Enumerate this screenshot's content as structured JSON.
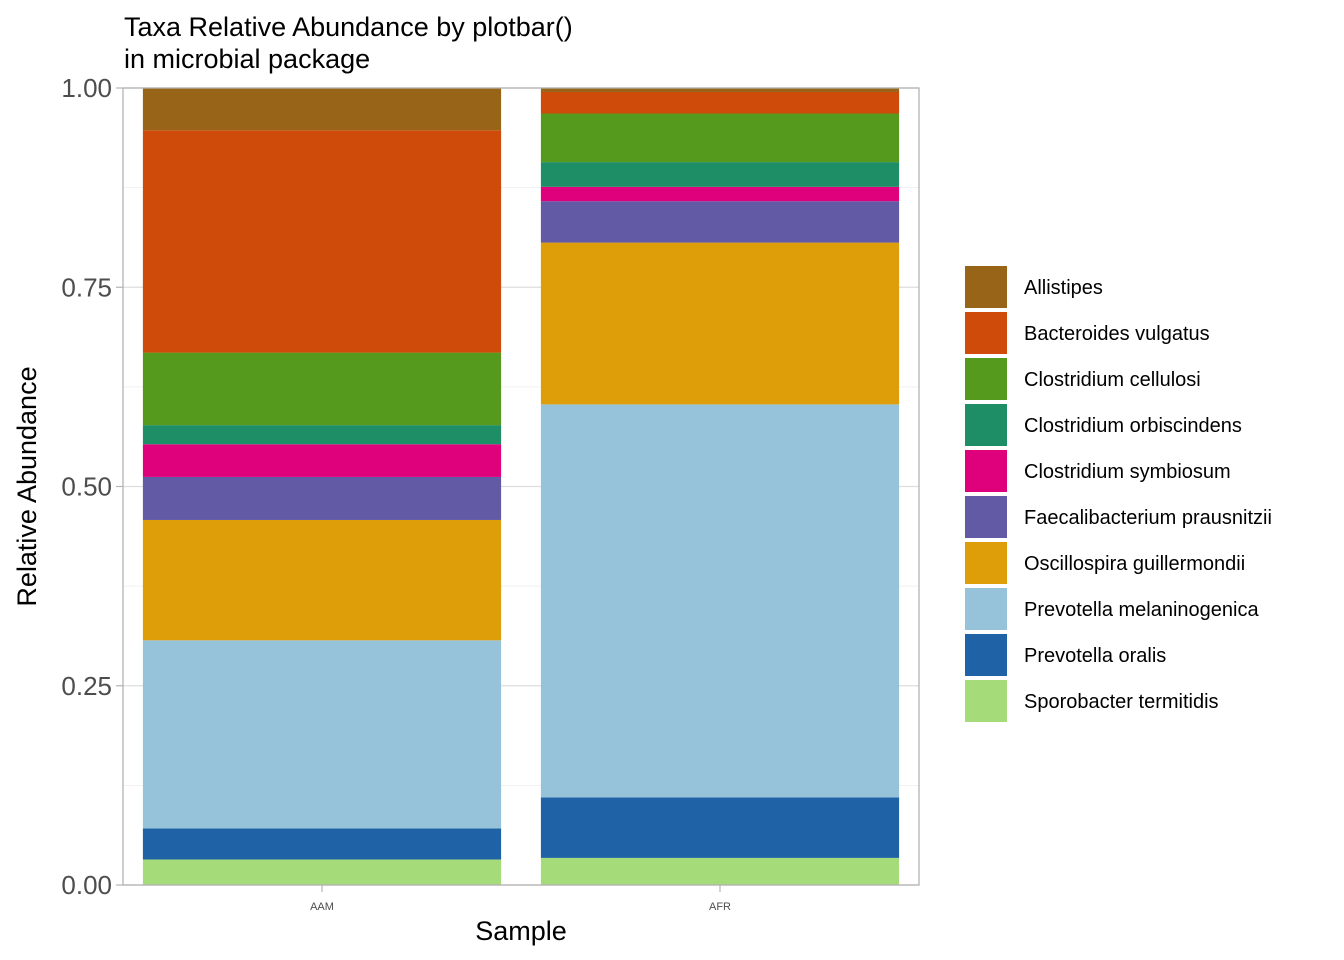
{
  "chart_data": {
    "type": "bar",
    "stacked": true,
    "title": "Taxa Relative Abundance by plotbar()\nin microbial package",
    "title_lines": [
      "Taxa Relative Abundance by plotbar()",
      "in microbial package"
    ],
    "xlabel": "Sample",
    "ylabel": "Relative Abundance",
    "ylim": [
      0,
      1
    ],
    "yticks": [
      "0.00",
      "0.25",
      "0.50",
      "0.75",
      "1.00"
    ],
    "ytick_values": [
      0,
      0.25,
      0.5,
      0.75,
      1.0
    ],
    "categories": [
      "AAM",
      "AFR"
    ],
    "grid": true,
    "legend_position": "right",
    "series": [
      {
        "name": "Sporobacter termitidis",
        "color": "#A6DB79",
        "values": [
          0.032,
          0.034
        ]
      },
      {
        "name": "Prevotella oralis",
        "color": "#1F63A6",
        "values": [
          0.039,
          0.076
        ]
      },
      {
        "name": "Prevotella melaninogenica",
        "color": "#97C3DA",
        "values": [
          0.236,
          0.493
        ]
      },
      {
        "name": "Oscillospira guillermondii",
        "color": "#DE9E09",
        "values": [
          0.151,
          0.203
        ]
      },
      {
        "name": "Faecalibacterium prausnitzii",
        "color": "#625AA5",
        "values": [
          0.054,
          0.052
        ]
      },
      {
        "name": "Clostridium symbiosum",
        "color": "#DF007C",
        "values": [
          0.041,
          0.018
        ]
      },
      {
        "name": "Clostridium orbiscindens",
        "color": "#1D8E66",
        "values": [
          0.024,
          0.031
        ]
      },
      {
        "name": "Clostridium cellulosi",
        "color": "#559A1C",
        "values": [
          0.091,
          0.061
        ]
      },
      {
        "name": "Bacteroides vulgatus",
        "color": "#CE4B09",
        "values": [
          0.279,
          0.027
        ]
      },
      {
        "name": "Allistipes",
        "color": "#986417",
        "values": [
          0.053,
          0.005
        ]
      }
    ],
    "legend_order": [
      "Allistipes",
      "Bacteroides vulgatus",
      "Clostridium cellulosi",
      "Clostridium orbiscindens",
      "Clostridium symbiosum",
      "Faecalibacterium prausnitzii",
      "Oscillospira guillermondii",
      "Prevotella melaninogenica",
      "Prevotella oralis",
      "Sporobacter termitidis"
    ]
  }
}
